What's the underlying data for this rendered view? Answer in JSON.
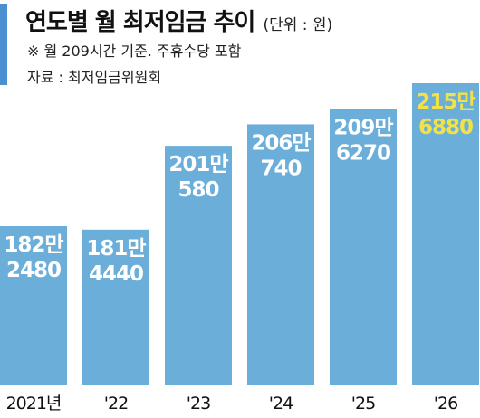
{
  "header": {
    "title": "연도별 월 최저임금 추이",
    "unit_note": "(단위 : 원)",
    "basis_note": "※ 월 209시간 기준. 주휴수당 포함",
    "source_note": "자료 : 최저임금위원회"
  },
  "colors": {
    "bar": "#6aaed9",
    "accent": "#4a8fd0",
    "label": "#ffffff",
    "highlight_label": "#f2e24a"
  },
  "chart_data": {
    "type": "bar",
    "title": "연도별 월 최저임금 추이",
    "categories": [
      "2021년",
      "'22",
      "'23",
      "'24",
      "'25",
      "'26"
    ],
    "values": [
      1822480,
      1814440,
      2010580,
      2060740,
      2096270,
      2156880
    ],
    "data_labels": [
      [
        "182만",
        "2480"
      ],
      [
        "181만",
        "4440"
      ],
      [
        "201만",
        "580"
      ],
      [
        "206만",
        "740"
      ],
      [
        "209만",
        "6270"
      ],
      [
        "215만",
        "6880"
      ]
    ],
    "highlight_index": 5,
    "unit": "원",
    "grid": false,
    "legend": "none"
  }
}
